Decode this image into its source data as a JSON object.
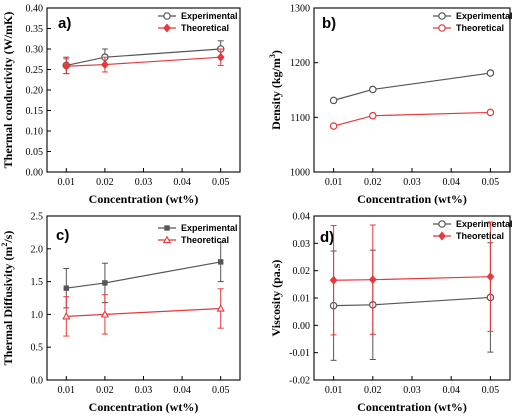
{
  "colors": {
    "experimental": "#555555",
    "theoretical": "#e8383b",
    "frame": "#000000",
    "background": "#ffffff"
  },
  "chart_data": [
    {
      "type": "line",
      "panel_label": "a)",
      "xlabel": "Concentration (wt%)",
      "ylabel": "Thermal conductivity (W/mK)",
      "xlim": [
        0.005,
        0.055
      ],
      "ylim": [
        0.0,
        0.4
      ],
      "x_ticks": [
        "0.01",
        "0.02",
        "0.03",
        "0.04",
        "0.05"
      ],
      "x_tick_values": [
        0.01,
        0.02,
        0.03,
        0.04,
        0.05
      ],
      "y_ticks": [
        "0.00",
        "0.05",
        "0.10",
        "0.15",
        "0.20",
        "0.25",
        "0.30",
        "0.35",
        "0.40"
      ],
      "y_tick_values": [
        0.0,
        0.05,
        0.1,
        0.15,
        0.2,
        0.25,
        0.3,
        0.35,
        0.4
      ],
      "legend_position": "top-right",
      "x": [
        0.01,
        0.02,
        0.05
      ],
      "series": [
        {
          "name": "Experimental",
          "values": [
            0.26,
            0.28,
            0.3
          ],
          "error": [
            0.02,
            0.02,
            0.02
          ],
          "marker": "circle",
          "color": "#555555"
        },
        {
          "name": "Theoretical",
          "values": [
            0.258,
            0.262,
            0.28
          ],
          "error": [
            0.018,
            0.018,
            0.02
          ],
          "marker": "diamond",
          "color": "#e8383b"
        }
      ]
    },
    {
      "type": "line",
      "panel_label": "b)",
      "xlabel": "Concentration (wt%)",
      "ylabel": "Density (kg/m",
      "ylabel_sup": "3",
      "ylabel_end": ")",
      "xlim": [
        0.005,
        0.055
      ],
      "ylim": [
        1000,
        1300
      ],
      "x_ticks": [
        "0.01",
        "0.02",
        "0.03",
        "0.04",
        "0.05"
      ],
      "x_tick_values": [
        0.01,
        0.02,
        0.03,
        0.04,
        0.05
      ],
      "y_ticks": [
        "1000",
        "1100",
        "1200",
        "1300"
      ],
      "y_tick_values": [
        1000,
        1100,
        1200,
        1300
      ],
      "legend_position": "top-right",
      "x": [
        0.01,
        0.02,
        0.05
      ],
      "series": [
        {
          "name": "Experimental",
          "values": [
            1131,
            1151,
            1181
          ],
          "error": [
            0,
            0,
            0
          ],
          "marker": "circle",
          "color": "#555555"
        },
        {
          "name": "Theoretical",
          "values": [
            1084,
            1103,
            1109
          ],
          "error": [
            0,
            0,
            0
          ],
          "marker": "circle",
          "color": "#e8383b"
        }
      ]
    },
    {
      "type": "line",
      "panel_label": "c)",
      "xlabel": "Concentration (wt%)",
      "ylabel": "Thermal Diffusivity (m",
      "ylabel_sup": "2",
      "ylabel_end": "/s)",
      "xlim": [
        0.005,
        0.055
      ],
      "ylim": [
        0.0,
        2.5
      ],
      "x_ticks": [
        "0.01",
        "0.02",
        "0.03",
        "0.04",
        "0.05"
      ],
      "x_tick_values": [
        0.01,
        0.02,
        0.03,
        0.04,
        0.05
      ],
      "y_ticks": [
        "0.0",
        "0.5",
        "1.0",
        "1.5",
        "2.0",
        "2.5"
      ],
      "y_tick_values": [
        0.0,
        0.5,
        1.0,
        1.5,
        2.0,
        2.5
      ],
      "legend_position": "top-right",
      "x": [
        0.01,
        0.02,
        0.05
      ],
      "series": [
        {
          "name": "Experimental",
          "values": [
            1.4,
            1.48,
            1.8
          ],
          "error": [
            0.3,
            0.3,
            0.3
          ],
          "marker": "square",
          "color": "#555555"
        },
        {
          "name": "Theoretical",
          "values": [
            0.97,
            1.0,
            1.09
          ],
          "error": [
            0.3,
            0.3,
            0.3
          ],
          "marker": "triangle",
          "color": "#e8383b"
        }
      ]
    },
    {
      "type": "line",
      "panel_label": "d)",
      "xlabel": "Concentration (wt%)",
      "ylabel": "Viscosity (pa.s)",
      "xlim": [
        0.005,
        0.055
      ],
      "ylim": [
        -0.02,
        0.04
      ],
      "x_ticks": [
        "0.01",
        "0.02",
        "0.03",
        "0.04",
        "0.05"
      ],
      "x_tick_values": [
        0.01,
        0.02,
        0.03,
        0.04,
        0.05
      ],
      "y_ticks": [
        "-0.02",
        "-0.01",
        "0.00",
        "0.01",
        "0.02",
        "0.03",
        "0.04"
      ],
      "y_tick_values": [
        -0.02,
        -0.01,
        0.0,
        0.01,
        0.02,
        0.03,
        0.04
      ],
      "legend_position": "top-right",
      "x": [
        0.01,
        0.02,
        0.05
      ],
      "series": [
        {
          "name": "Experimental",
          "values": [
            0.0072,
            0.0075,
            0.0102
          ],
          "error": [
            0.02,
            0.02,
            0.02
          ],
          "marker": "circle",
          "color": "#555555"
        },
        {
          "name": "Theoretical",
          "values": [
            0.0165,
            0.0167,
            0.0178
          ],
          "error": [
            0.02,
            0.02,
            0.02
          ],
          "marker": "diamond",
          "color": "#e8383b"
        }
      ]
    }
  ]
}
